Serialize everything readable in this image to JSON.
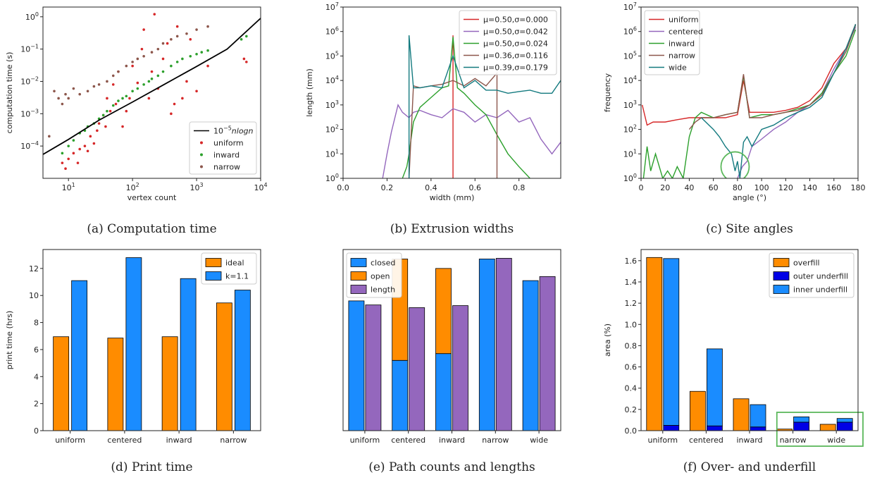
{
  "chart_data": [
    {
      "id": "a",
      "type": "scatter",
      "title": "(a) Computation time",
      "xlabel": "vertex count",
      "ylabel": "computation time (s)",
      "xscale": "log",
      "yscale": "log",
      "xlim": [
        4,
        10000
      ],
      "ylim": [
        1e-05,
        2
      ],
      "xticks": [
        10,
        100,
        1000,
        10000
      ],
      "xticklabels": [
        "10^1",
        "10^2",
        "10^3",
        "10^4"
      ],
      "yticks": [
        0.0001,
        0.001,
        0.01,
        0.1,
        1
      ],
      "yticklabels": [
        "10^-4",
        "10^-3",
        "10^-2",
        "10^-1",
        "10^0"
      ],
      "legend": "lower-right",
      "fit_line": {
        "label": "10^-5 n log n",
        "x": [
          4,
          10,
          30,
          100,
          300,
          1000,
          3000,
          10000
        ],
        "y": [
          5.5e-05,
          0.00016,
          0.00063,
          0.0023,
          0.0077,
          0.029,
          0.1,
          0.9
        ]
      },
      "series": [
        {
          "name": "uniform",
          "color": "#d62728",
          "x": [
            8,
            9,
            10,
            12,
            14,
            15,
            18,
            20,
            22,
            25,
            28,
            30,
            35,
            38,
            40,
            45,
            50,
            55,
            60,
            70,
            80,
            90,
            100,
            120,
            140,
            150,
            180,
            200,
            220,
            250,
            300,
            350,
            400,
            450,
            500,
            600,
            700,
            800,
            1000,
            1500,
            5500,
            6000
          ],
          "y": [
            3e-05,
            2e-05,
            4e-05,
            6e-05,
            3e-05,
            8e-05,
            0.0001,
            7e-05,
            0.0002,
            0.00012,
            0.0003,
            0.0005,
            0.0009,
            0.0004,
            0.003,
            0.0012,
            0.008,
            0.002,
            0.02,
            0.0004,
            0.0012,
            0.003,
            0.03,
            0.009,
            0.1,
            0.4,
            0.003,
            0.02,
            1.2,
            0.006,
            0.05,
            0.15,
            0.001,
            0.002,
            0.5,
            0.003,
            0.01,
            0.2,
            0.005,
            0.03,
            0.05,
            0.04
          ]
        },
        {
          "name": "inward",
          "color": "#2ca02c",
          "x": [
            8,
            10,
            12,
            15,
            18,
            20,
            25,
            30,
            35,
            40,
            50,
            60,
            70,
            80,
            100,
            120,
            150,
            180,
            200,
            250,
            300,
            400,
            500,
            600,
            800,
            1000,
            1200,
            1500,
            5000,
            6000
          ],
          "y": [
            6e-05,
            0.0001,
            0.00015,
            0.00025,
            0.0003,
            0.0004,
            0.0005,
            0.0007,
            0.0009,
            0.0012,
            0.0018,
            0.0025,
            0.003,
            0.0035,
            0.005,
            0.006,
            0.008,
            0.01,
            0.012,
            0.015,
            0.02,
            0.03,
            0.04,
            0.05,
            0.06,
            0.07,
            0.08,
            0.09,
            0.2,
            0.25
          ]
        },
        {
          "name": "narrow",
          "color": "#8c564b",
          "x": [
            5,
            6,
            7,
            8,
            9,
            10,
            12,
            15,
            20,
            25,
            30,
            40,
            50,
            60,
            80,
            100,
            120,
            150,
            200,
            250,
            300,
            400,
            500,
            700,
            1000,
            1500
          ],
          "y": [
            0.0002,
            0.005,
            0.003,
            0.002,
            0.004,
            0.003,
            0.006,
            0.004,
            0.005,
            0.007,
            0.008,
            0.01,
            0.015,
            0.02,
            0.03,
            0.04,
            0.05,
            0.06,
            0.08,
            0.1,
            0.15,
            0.2,
            0.25,
            0.3,
            0.4,
            0.5
          ]
        }
      ]
    },
    {
      "id": "b",
      "type": "line",
      "title": "(b) Extrusion widths",
      "xlabel": "width (mm)",
      "ylabel": "length (mm)",
      "yscale": "log",
      "xlim": [
        0,
        0.99
      ],
      "ylim": [
        1,
        10000000
      ],
      "xticks": [
        0.0,
        0.2,
        0.4,
        0.6,
        0.8
      ],
      "xticklabels": [
        "0.0",
        "0.2",
        "0.4",
        "0.6",
        "0.8"
      ],
      "yticks": [
        1,
        10,
        100,
        1000,
        10000,
        100000,
        1000000,
        10000000
      ],
      "yticklabels": [
        "10^0",
        "10^1",
        "10^2",
        "10^3",
        "10^4",
        "10^5",
        "10^6",
        "10^7"
      ],
      "legend": "upper-right",
      "series": [
        {
          "name": "μ=0.50,σ=0.000",
          "color": "#d62728",
          "x": [
            0.5,
            0.5,
            0.5
          ],
          "y": [
            1,
            700000,
            1
          ]
        },
        {
          "name": "μ=0.50,σ=0.042",
          "color": "#9467bd",
          "x": [
            0.18,
            0.2,
            0.22,
            0.25,
            0.27,
            0.3,
            0.32,
            0.35,
            0.4,
            0.45,
            0.5,
            0.55,
            0.6,
            0.65,
            0.7,
            0.75,
            0.8,
            0.85,
            0.9,
            0.95,
            0.99
          ],
          "y": [
            1,
            10,
            80,
            1000,
            500,
            300,
            500,
            600,
            400,
            300,
            700,
            500,
            200,
            400,
            300,
            600,
            200,
            300,
            40,
            10,
            30
          ]
        },
        {
          "name": "μ=0.50,σ=0.024",
          "color": "#2ca02c",
          "x": [
            0.27,
            0.29,
            0.3,
            0.32,
            0.35,
            0.4,
            0.45,
            0.48,
            0.5,
            0.52,
            0.55,
            0.6,
            0.65,
            0.7,
            0.75,
            0.8,
            0.85
          ],
          "y": [
            1,
            3,
            10,
            200,
            800,
            2000,
            5000,
            6000,
            600000,
            5000,
            3000,
            1000,
            400,
            60,
            10,
            3,
            1
          ]
        },
        {
          "name": "μ=0.36,σ=0.116",
          "color": "#8c564b",
          "x": [
            0.3,
            0.32,
            0.35,
            0.4,
            0.45,
            0.5,
            0.55,
            0.6,
            0.65,
            0.7,
            0.7
          ],
          "y": [
            1,
            6000,
            5000,
            6000,
            7000,
            10000,
            6000,
            12000,
            6000,
            20000,
            1
          ]
        },
        {
          "name": "μ=0.39,σ=0.179",
          "color": "#137a7f",
          "x": [
            0.3,
            0.3,
            0.32,
            0.35,
            0.4,
            0.45,
            0.5,
            0.55,
            0.6,
            0.65,
            0.7,
            0.75,
            0.8,
            0.85,
            0.9,
            0.95,
            0.99
          ],
          "y": [
            1,
            700000,
            5000,
            5000,
            6000,
            5000,
            100000,
            5000,
            10000,
            4000,
            4000,
            3000,
            3500,
            4000,
            3000,
            3000,
            10000
          ]
        }
      ]
    },
    {
      "id": "c",
      "type": "line",
      "title": "(c) Site angles",
      "xlabel": "angle (°)",
      "ylabel": "frequency",
      "yscale": "log",
      "xlim": [
        0,
        180
      ],
      "ylim": [
        1,
        10000000
      ],
      "xticks": [
        0,
        20,
        40,
        60,
        80,
        100,
        120,
        140,
        160,
        180
      ],
      "xticklabels": [
        "0",
        "20",
        "40",
        "60",
        "80",
        "100",
        "120",
        "140",
        "160",
        "180"
      ],
      "yticks": [
        1,
        10,
        100,
        1000,
        10000,
        100000,
        1000000,
        10000000
      ],
      "yticklabels": [
        "10^0",
        "10^1",
        "10^2",
        "10^3",
        "10^4",
        "10^5",
        "10^6",
        "10^7"
      ],
      "legend": "upper-left",
      "highlight_circle": {
        "x": 78,
        "y": 3
      },
      "series": [
        {
          "name": "uniform",
          "color": "#d62728",
          "x": [
            1,
            5,
            10,
            20,
            30,
            40,
            50,
            60,
            70,
            80,
            85,
            90,
            100,
            110,
            120,
            130,
            140,
            150,
            160,
            170,
            178
          ],
          "y": [
            1000,
            150,
            200,
            200,
            250,
            300,
            300,
            300,
            300,
            400,
            10000,
            500,
            500,
            500,
            600,
            800,
            1500,
            5000,
            50000,
            200000,
            2000000
          ]
        },
        {
          "name": "centered",
          "color": "#9467bd",
          "x": [
            80,
            84,
            88,
            92,
            100,
            110,
            120,
            130,
            140,
            150,
            160,
            170,
            178
          ],
          "y": [
            1,
            3,
            5,
            20,
            40,
            100,
            200,
            500,
            1000,
            3000,
            30000,
            200000,
            1500000
          ]
        },
        {
          "name": "inward",
          "color": "#2ca02c",
          "x": [
            2,
            5,
            8,
            12,
            18,
            22,
            26,
            30,
            35,
            40,
            45,
            50,
            60,
            70,
            80,
            85,
            90,
            100,
            110,
            120,
            130,
            140,
            150,
            160,
            170,
            178
          ],
          "y": [
            1,
            20,
            2,
            10,
            1,
            2,
            1,
            3,
            1,
            50,
            300,
            500,
            300,
            400,
            500,
            15000,
            300,
            400,
            400,
            500,
            700,
            1000,
            3000,
            20000,
            100000,
            1200000
          ]
        },
        {
          "name": "narrow",
          "color": "#8c564b",
          "x": [
            40,
            45,
            50,
            60,
            70,
            80,
            85,
            90,
            100,
            110,
            120,
            130,
            140,
            150,
            160,
            170,
            178
          ],
          "y": [
            100,
            200,
            300,
            300,
            400,
            500,
            18000,
            300,
            300,
            400,
            500,
            600,
            1000,
            2500,
            20000,
            150000,
            1800000
          ]
        },
        {
          "name": "wide",
          "color": "#137a7f",
          "x": [
            50,
            60,
            65,
            70,
            75,
            78,
            80,
            82,
            85,
            88,
            92,
            100,
            110,
            120,
            130,
            140,
            150,
            160,
            170,
            178
          ],
          "y": [
            300,
            100,
            50,
            20,
            10,
            2,
            5,
            1,
            30,
            50,
            20,
            100,
            150,
            300,
            500,
            800,
            2000,
            20000,
            200000,
            2000000
          ]
        }
      ]
    },
    {
      "id": "d",
      "type": "bar",
      "title": "(d) Print time",
      "xlabel": "",
      "ylabel": "print time (hrs)",
      "ylim": [
        0,
        13.4
      ],
      "yticks": [
        0,
        2,
        4,
        6,
        8,
        10,
        12
      ],
      "yticklabels": [
        "0",
        "2",
        "4",
        "6",
        "8",
        "10",
        "12"
      ],
      "legend": "upper-right",
      "categories": [
        "uniform",
        "centered",
        "inward",
        "narrow"
      ],
      "series": [
        {
          "name": "ideal",
          "color": "#ff8c00",
          "values": [
            6.95,
            6.85,
            6.95,
            9.45
          ]
        },
        {
          "name": "k=1.1",
          "color": "#1a8cff",
          "values": [
            11.1,
            12.8,
            11.25,
            10.4
          ]
        }
      ]
    },
    {
      "id": "e",
      "type": "bar",
      "title": "(e) Path counts and lengths",
      "xlabel": "",
      "ylabel": "",
      "ylim": [
        0,
        13.4
      ],
      "legend": "upper-left",
      "categories": [
        "uniform",
        "centered",
        "inward",
        "narrow",
        "wide"
      ],
      "series": [
        {
          "name": "closed",
          "color": "#1a8cff",
          "values": [
            9.6,
            5.2,
            5.7,
            12.7,
            11.1
          ]
        },
        {
          "name": "open",
          "color": "#ff8c00",
          "values": [
            0,
            7.5,
            6.3,
            0,
            0
          ]
        },
        {
          "name": "length",
          "color": "#9467bd",
          "values": [
            9.3,
            9.1,
            9.25,
            12.75,
            11.4
          ]
        }
      ]
    },
    {
      "id": "f",
      "type": "bar",
      "title": "(f) Over- and underfill",
      "xlabel": "",
      "ylabel": "area (%)",
      "ylim": [
        0,
        1.705
      ],
      "yticks": [
        0.0,
        0.2,
        0.4,
        0.6,
        0.8,
        1.0,
        1.2,
        1.4,
        1.6
      ],
      "yticklabels": [
        "0.0",
        "0.2",
        "0.4",
        "0.6",
        "0.8",
        "1.0",
        "1.2",
        "1.4",
        "1.6"
      ],
      "legend": "upper-right",
      "categories": [
        "uniform",
        "centered",
        "inward",
        "narrow",
        "wide"
      ],
      "series": [
        {
          "name": "overfill",
          "color": "#ff8c00",
          "values": [
            1.63,
            0.37,
            0.3,
            0.015,
            0.06
          ]
        },
        {
          "name": "outer underfill",
          "color": "#0000e6",
          "values": [
            0.05,
            0.045,
            0.035,
            0.08,
            0.08
          ]
        },
        {
          "name": "inner underfill",
          "color": "#1a8cff",
          "values": [
            1.57,
            0.725,
            0.21,
            0.05,
            0.035
          ]
        }
      ]
    }
  ]
}
